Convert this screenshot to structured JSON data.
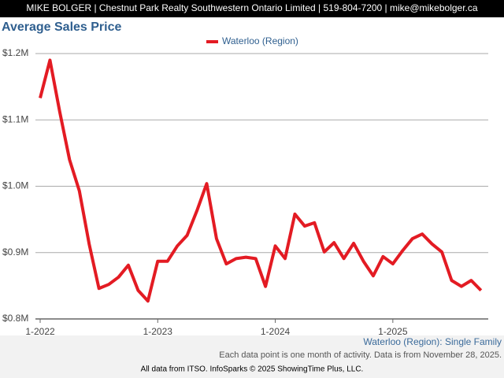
{
  "header": "MIKE BOLGER | Chestnut Park Realty Southwestern Ontario Limited | 519-804-7200 | mike@mikebolger.ca",
  "chart_data": {
    "type": "line",
    "title": "Average Sales Price",
    "categories": [
      "1-2022",
      null,
      null,
      null,
      null,
      null,
      null,
      null,
      null,
      null,
      null,
      null,
      "1-2023",
      null,
      null,
      null,
      null,
      null,
      null,
      null,
      null,
      null,
      null,
      null,
      "1-2024",
      null,
      null,
      null,
      null,
      null,
      null,
      null,
      null,
      null,
      null,
      null,
      "1-2025",
      null,
      null,
      null,
      null,
      null,
      null,
      null,
      null,
      null
    ],
    "series": [
      {
        "name": "Waterloo (Region)",
        "color": "#e31b23",
        "values": [
          1133000,
          1190000,
          1112000,
          1040000,
          993000,
          913000,
          846000,
          852000,
          863000,
          881000,
          843000,
          827000,
          887000,
          887000,
          910000,
          926000,
          963000,
          1004000,
          921000,
          883000,
          891000,
          893000,
          891000,
          849000,
          910000,
          891000,
          958000,
          940000,
          945000,
          901000,
          915000,
          891000,
          914000,
          887000,
          865000,
          894000,
          883000,
          903000,
          921000,
          928000,
          913000,
          901000,
          858000,
          849000,
          858000,
          843000
        ]
      }
    ],
    "ylim": [
      800000,
      1200000
    ],
    "yticks": [
      {
        "value": 800000,
        "label": "$0.8M"
      },
      {
        "value": 900000,
        "label": "$0.9M"
      },
      {
        "value": 1000000,
        "label": "$1.0M"
      },
      {
        "value": 1100000,
        "label": "$1.1M"
      },
      {
        "value": 1200000,
        "label": "$1.2M"
      }
    ],
    "grid": true,
    "legend": "top"
  },
  "footer": {
    "series_label": "Waterloo (Region): Single Family",
    "note": "Each data point is one month of activity. Data is from November 28, 2025.",
    "credit": "All data from ITSO. InfoSparks © 2025 ShowingTime Plus, LLC."
  }
}
